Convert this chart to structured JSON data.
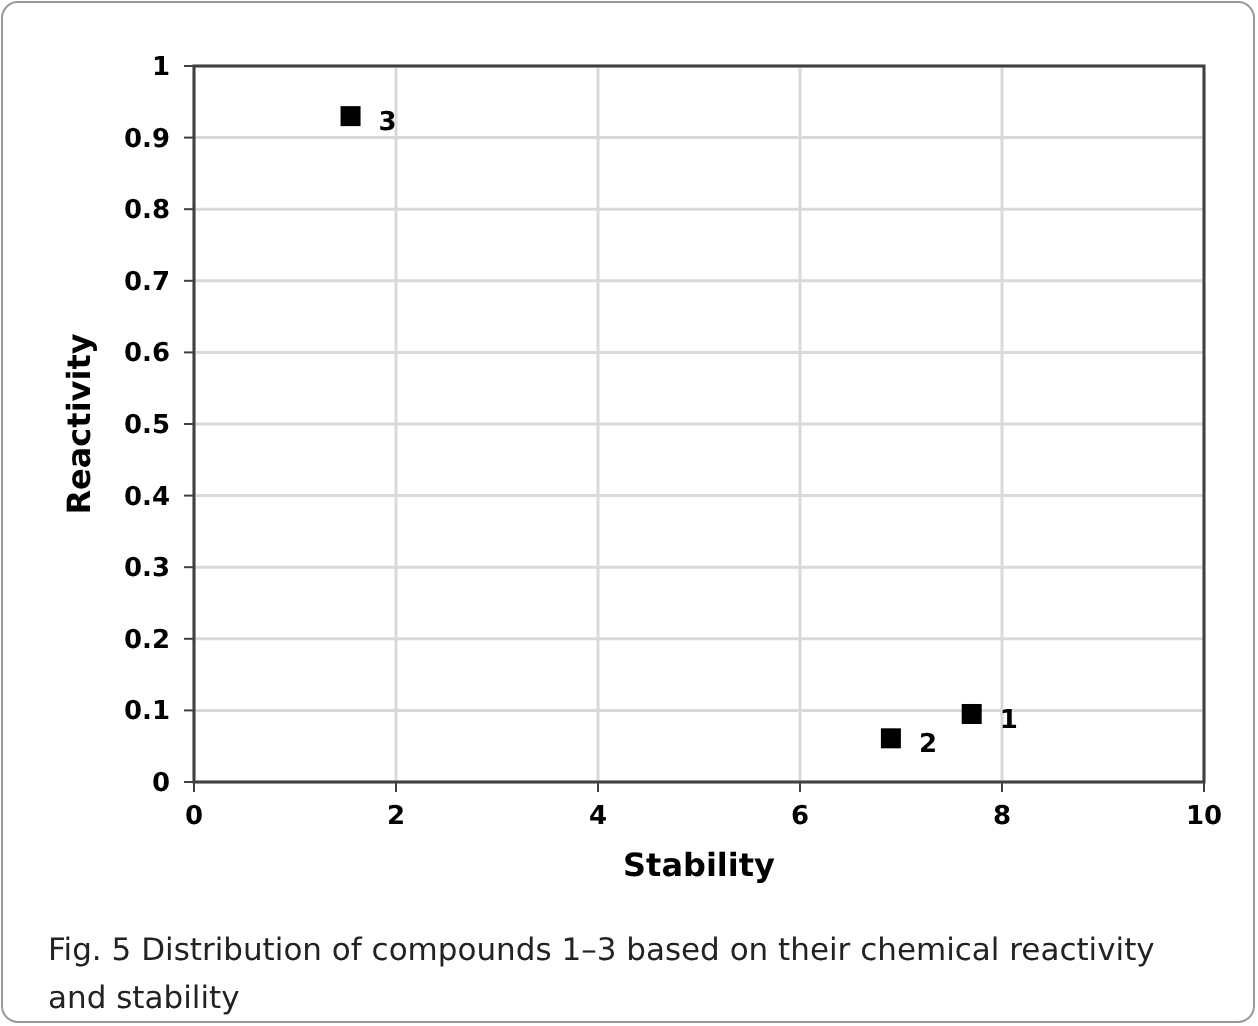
{
  "chart_data": {
    "type": "scatter",
    "xlabel": "Stability",
    "ylabel": "Reactivity",
    "x": [
      7.7,
      6.9,
      1.55
    ],
    "series": [
      {
        "color": "#000000",
        "values": [
          0.095,
          0.061,
          0.93
        ]
      }
    ],
    "xlim": [
      0,
      10
    ],
    "xticks": [
      0,
      2,
      4,
      6,
      8,
      10
    ],
    "ylim": [
      0,
      1
    ],
    "yticks": [
      0,
      0.1,
      0.2,
      0.3,
      0.4,
      0.5,
      0.6,
      0.7,
      0.8,
      0.9,
      1
    ],
    "grid": true,
    "marker": "square",
    "annotations": [
      {
        "text": "1",
        "x": 7.7,
        "y": 0.095
      },
      {
        "text": "2",
        "x": 6.9,
        "y": 0.061
      },
      {
        "text": "3",
        "x": 1.55,
        "y": 0.93
      },
      "Fig. 5  Distribution of compounds 1–3 based on their chemical reactivity and stability"
    ]
  }
}
